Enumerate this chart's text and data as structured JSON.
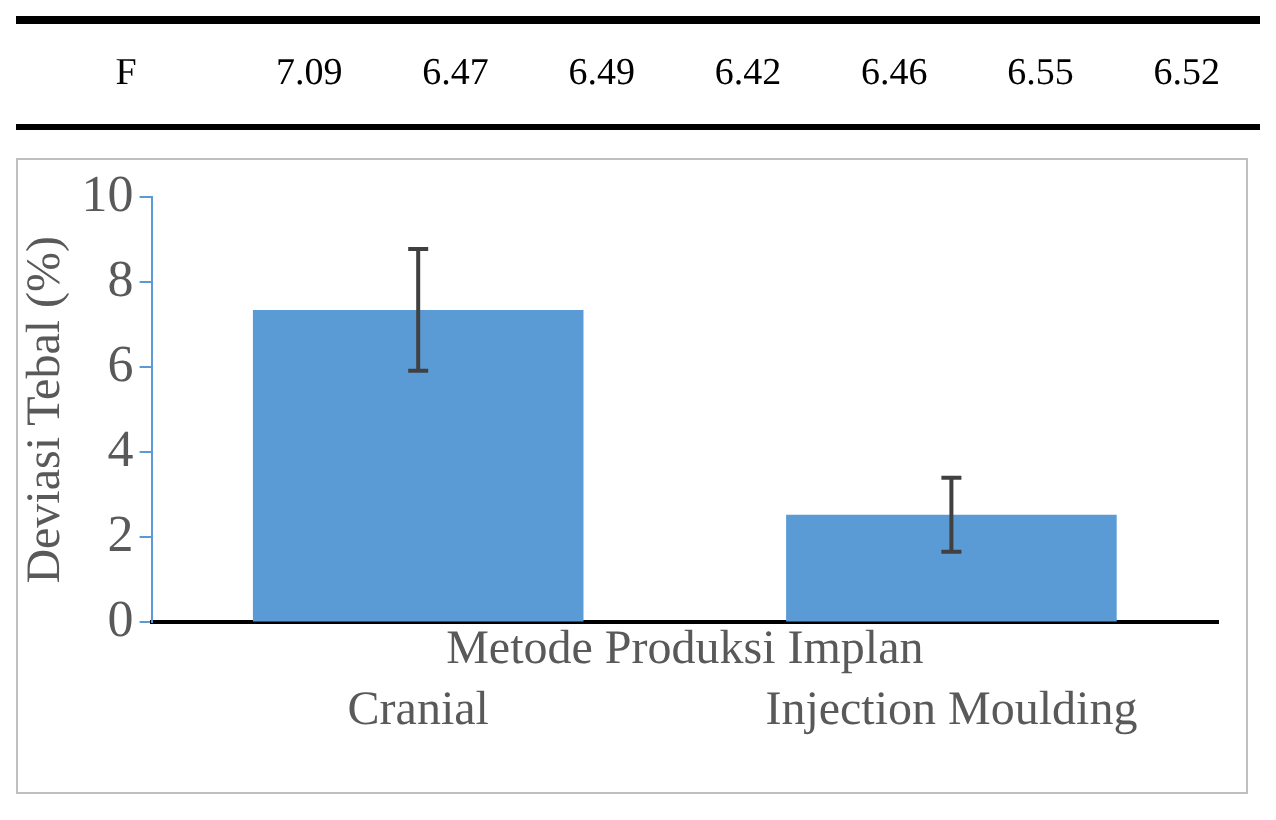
{
  "chart_data": {
    "type": "bar",
    "annotations": [
      "F",
      "7.09",
      "6.47",
      "6.49",
      "6.42",
      "6.46",
      "6.55",
      "6.52"
    ],
    "xlabel": "Metode Produksi Implan",
    "ylabel": "Deviasi Tebal (%)",
    "categories": [
      "Cranial",
      "Injection Moulding"
    ],
    "values": [
      7.35,
      2.53
    ],
    "errors": [
      1.43,
      0.87
    ],
    "color": "#5b9bd5",
    "ylim": [
      0,
      10
    ],
    "yticks": [
      0,
      2,
      4,
      6,
      8,
      10
    ],
    "grid": false,
    "legend": false
  }
}
